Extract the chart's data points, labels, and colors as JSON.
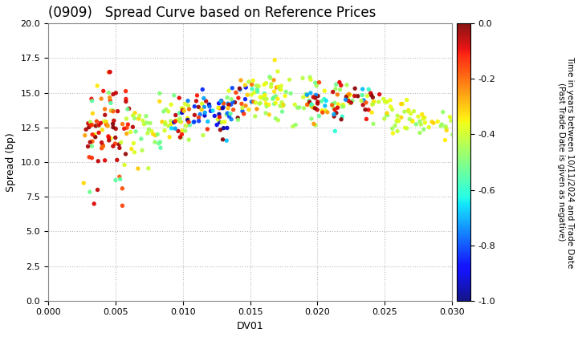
{
  "title": "(0909)   Spread Curve based on Reference Prices",
  "xlabel": "DV01",
  "ylabel": "Spread (bp)",
  "xlim": [
    0.0,
    0.03
  ],
  "ylim": [
    0.0,
    20.0
  ],
  "xticks": [
    0.0,
    0.005,
    0.01,
    0.015,
    0.02,
    0.025,
    0.03
  ],
  "yticks": [
    0.0,
    2.5,
    5.0,
    7.5,
    10.0,
    12.5,
    15.0,
    17.5,
    20.0
  ],
  "colorbar_label": "Time in years between 10/11/2024 and Trade Date\n(Past Trade Date is given as negative)",
  "colorbar_ticks": [
    0.0,
    -0.2,
    -0.4,
    -0.6,
    -0.8,
    -1.0
  ],
  "vmin": -1.0,
  "vmax": 0.0,
  "background_color": "#ffffff",
  "grid_color": "#bbbbbb",
  "title_fontsize": 12,
  "label_fontsize": 9,
  "marker_size": 15
}
